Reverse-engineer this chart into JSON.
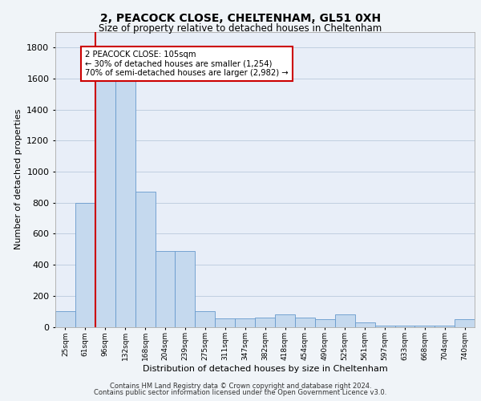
{
  "title1": "2, PEACOCK CLOSE, CHELTENHAM, GL51 0XH",
  "title2": "Size of property relative to detached houses in Cheltenham",
  "xlabel": "Distribution of detached houses by size in Cheltenham",
  "ylabel": "Number of detached properties",
  "footnote1": "Contains HM Land Registry data © Crown copyright and database right 2024.",
  "footnote2": "Contains public sector information licensed under the Open Government Licence v3.0.",
  "categories": [
    "25sqm",
    "61sqm",
    "96sqm",
    "132sqm",
    "168sqm",
    "204sqm",
    "239sqm",
    "275sqm",
    "311sqm",
    "347sqm",
    "382sqm",
    "418sqm",
    "454sqm",
    "490sqm",
    "525sqm",
    "561sqm",
    "597sqm",
    "633sqm",
    "668sqm",
    "704sqm",
    "740sqm"
  ],
  "values": [
    100,
    800,
    1660,
    1660,
    870,
    490,
    490,
    100,
    55,
    55,
    60,
    80,
    60,
    50,
    80,
    30,
    10,
    8,
    8,
    8,
    50
  ],
  "bar_color": "#c5d9ee",
  "bar_edge_color": "#6699cc",
  "red_line_x": 1.5,
  "annotation_text": "2 PEACOCK CLOSE: 105sqm\n← 30% of detached houses are smaller (1,254)\n70% of semi-detached houses are larger (2,982) →",
  "annotation_box_facecolor": "#ffffff",
  "annotation_box_edgecolor": "#cc0000",
  "red_line_color": "#cc0000",
  "ylim": [
    0,
    1900
  ],
  "yticks": [
    0,
    200,
    400,
    600,
    800,
    1000,
    1200,
    1400,
    1600,
    1800
  ],
  "grid_color": "#c0cfe0",
  "bg_color": "#ffffff",
  "plot_bg_color": "#e8eef8",
  "fig_bg_color": "#f0f4f8"
}
